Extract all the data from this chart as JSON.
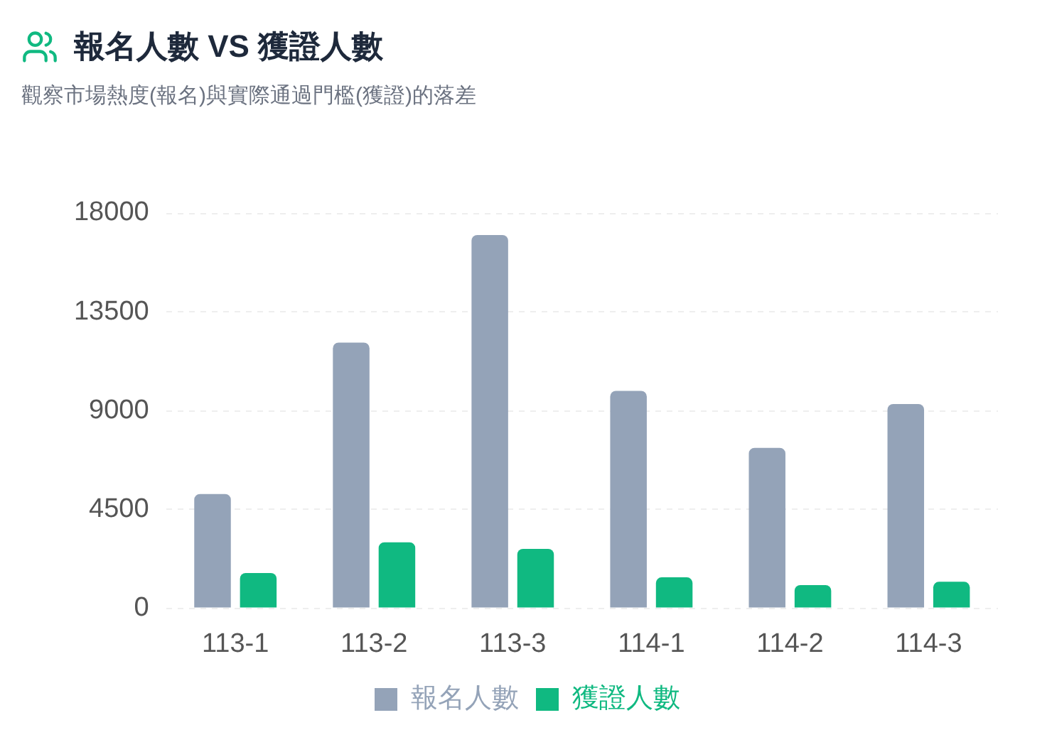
{
  "chart_data": {
    "type": "bar",
    "title": "報名人數 VS 獲證人數",
    "subtitle": "觀察市場熱度(報名)與實際通過門檻(獲證)的落差",
    "categories": [
      "113-1",
      "113-2",
      "113-3",
      "114-1",
      "114-2",
      "114-3"
    ],
    "series": [
      {
        "name": "報名人數",
        "color": "#94a3b8",
        "values": [
          5200,
          12100,
          17000,
          9900,
          7300,
          9300
        ]
      },
      {
        "name": "獲證人數",
        "color": "#10b981",
        "values": [
          1600,
          3000,
          2700,
          1400,
          1050,
          1200
        ]
      }
    ],
    "ylim": [
      0,
      18000
    ],
    "yticks": [
      0,
      4500,
      9000,
      13500,
      18000
    ],
    "grid": "y",
    "legend": "bottom"
  }
}
